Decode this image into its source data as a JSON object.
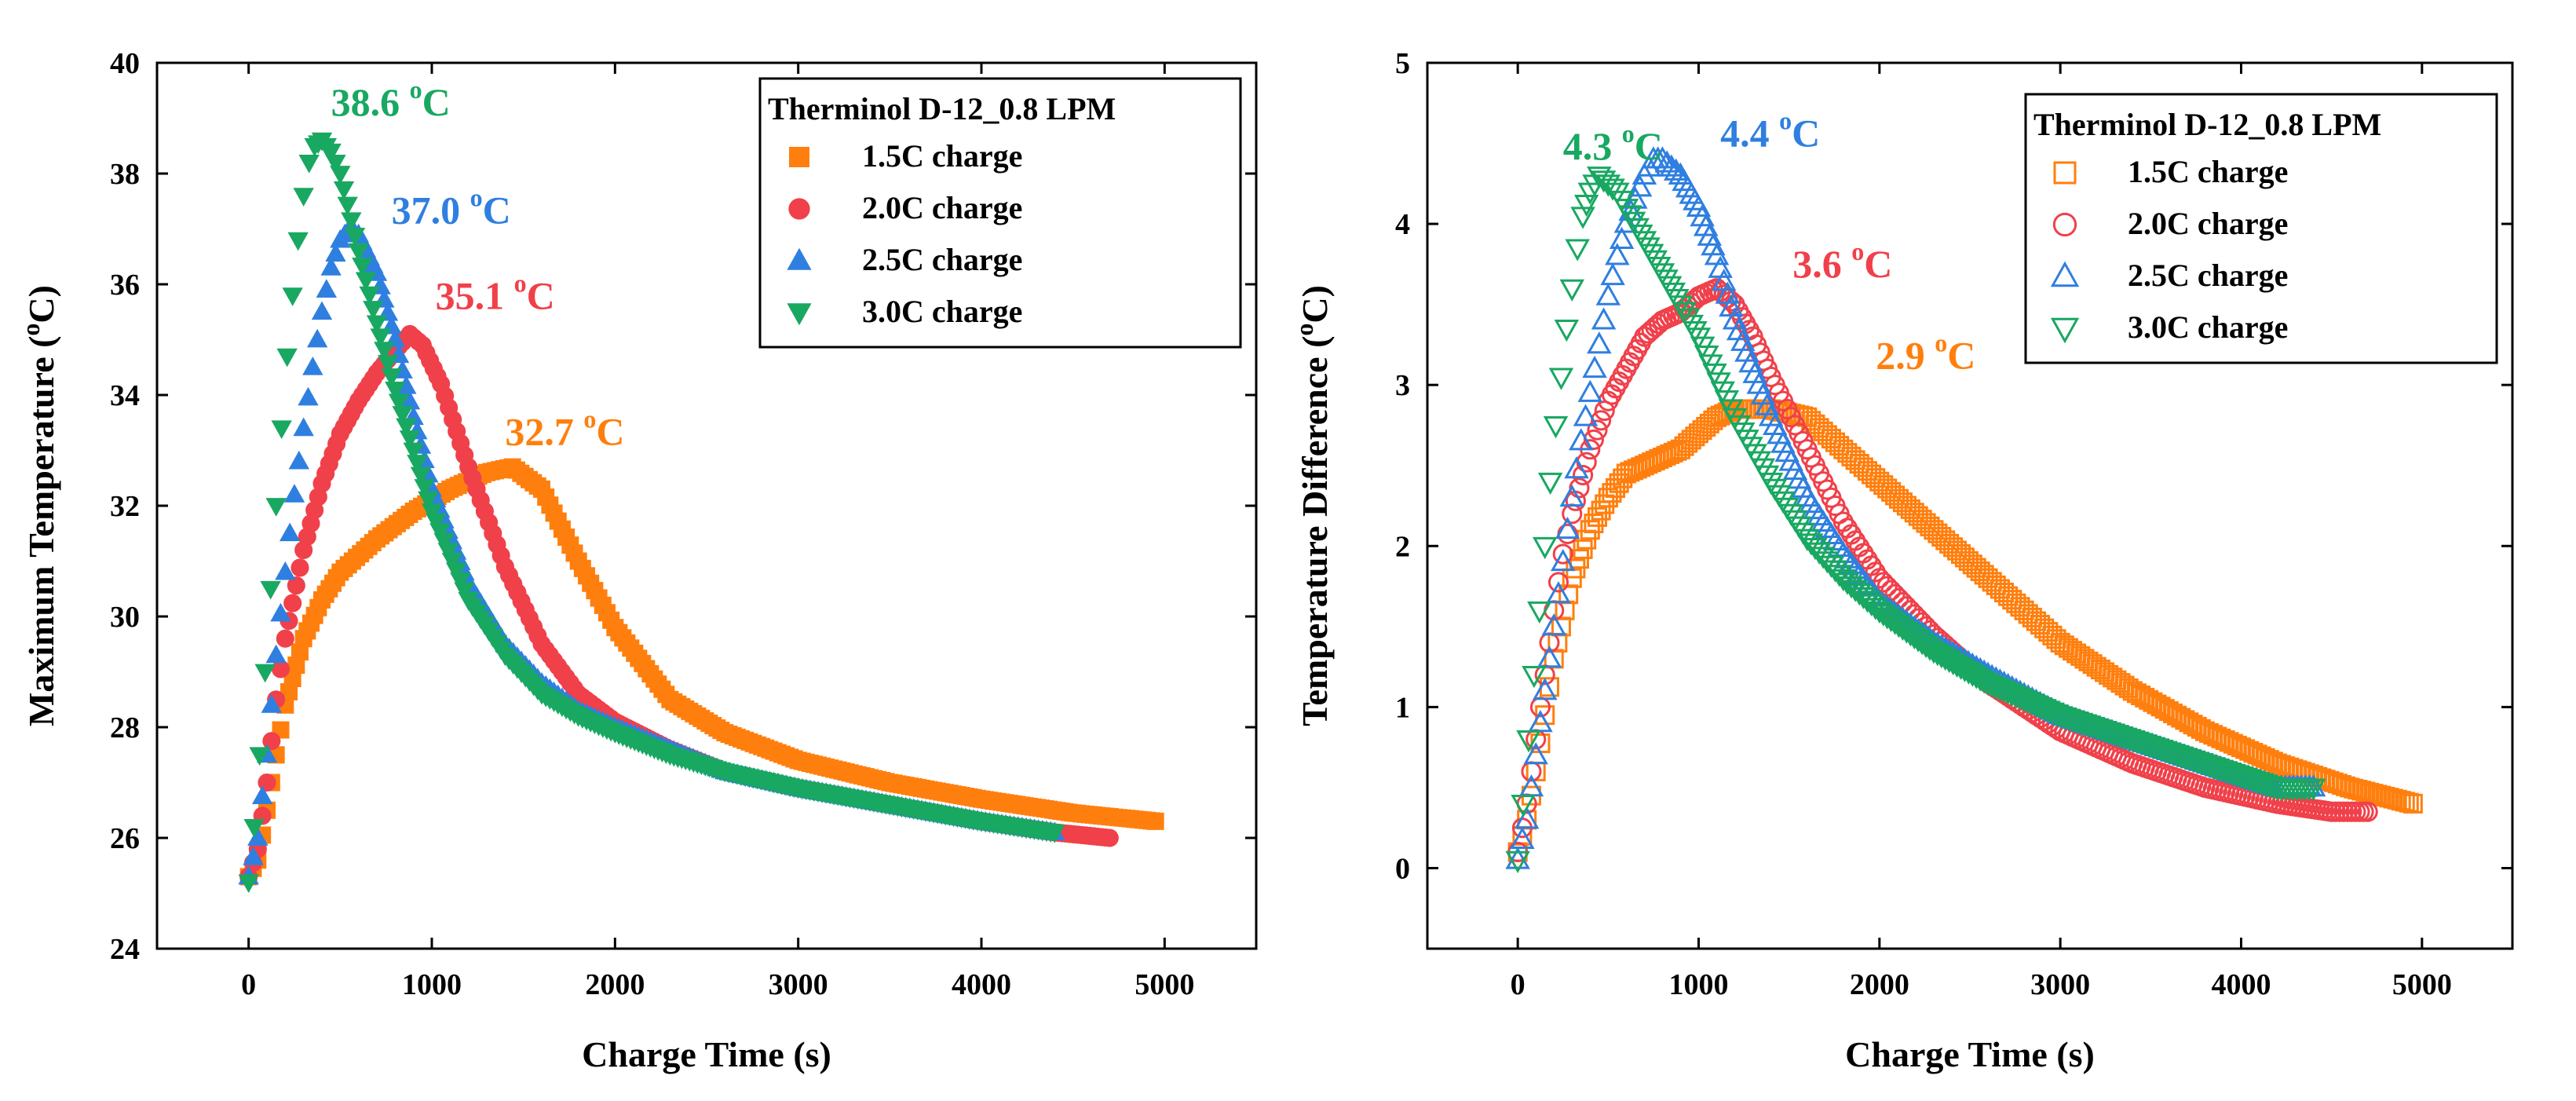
{
  "chart_data": [
    {
      "type": "scatter",
      "title": "",
      "xlabel": "Charge Time (s)",
      "ylabel_main": "Maximum Temperature (",
      "ylabel_sup": "o",
      "ylabel_end": "C)",
      "xlim": [
        -500,
        5500
      ],
      "ylim": [
        24,
        40
      ],
      "xticks": [
        0,
        1000,
        2000,
        3000,
        4000,
        5000
      ],
      "yticks": [
        24,
        26,
        28,
        30,
        32,
        34,
        36,
        38,
        40
      ],
      "legend_title": "Therminol D-12_0.8 LPM",
      "legend_position": "top-right",
      "series": [
        {
          "name": "1.5C charge",
          "color": "#FF7F0E",
          "marker": "square",
          "filled": true,
          "x": [
            0,
            50,
            100,
            150,
            200,
            300,
            400,
            500,
            700,
            900,
            1100,
            1300,
            1440,
            1600,
            1800,
            2000,
            2300,
            2600,
            3000,
            3500,
            4000,
            4500,
            4950
          ],
          "y": [
            25.3,
            25.6,
            26.5,
            27.5,
            28.4,
            29.6,
            30.3,
            30.8,
            31.4,
            31.9,
            32.3,
            32.6,
            32.7,
            32.3,
            31.0,
            29.8,
            28.5,
            27.9,
            27.4,
            27.0,
            26.7,
            26.45,
            26.3
          ]
        },
        {
          "name": "2.0C charge",
          "color": "#F0404A",
          "marker": "circle",
          "filled": true,
          "x": [
            0,
            50,
            100,
            150,
            200,
            300,
            400,
            500,
            600,
            700,
            800,
            880,
            950,
            1050,
            1200,
            1400,
            1600,
            1800,
            2000,
            2300,
            2600,
            3000,
            3500,
            4000,
            4400,
            4700
          ],
          "y": [
            25.3,
            25.8,
            27.0,
            28.5,
            29.6,
            31.2,
            32.4,
            33.3,
            33.9,
            34.4,
            34.8,
            35.1,
            34.9,
            34.2,
            32.7,
            30.9,
            29.5,
            28.6,
            28.1,
            27.6,
            27.2,
            26.9,
            26.6,
            26.3,
            26.1,
            26.0
          ]
        },
        {
          "name": "2.5C charge",
          "color": "#2F7FE0",
          "marker": "triangle-up",
          "filled": true,
          "x": [
            0,
            50,
            100,
            150,
            200,
            250,
            300,
            350,
            400,
            450,
            500,
            550,
            600,
            700,
            800,
            900,
            1000,
            1200,
            1400,
            1600,
            1800,
            2000,
            2300,
            2600,
            3000,
            3500,
            4000,
            4400
          ],
          "y": [
            25.3,
            26.0,
            27.5,
            29.3,
            30.8,
            32.2,
            33.4,
            34.5,
            35.5,
            36.3,
            36.8,
            37.0,
            36.9,
            36.2,
            35.0,
            33.6,
            32.3,
            30.6,
            29.5,
            28.8,
            28.3,
            28.0,
            27.6,
            27.2,
            26.9,
            26.6,
            26.3,
            26.1
          ]
        },
        {
          "name": "3.0C charge",
          "color": "#18A861",
          "marker": "triangle-down",
          "filled": true,
          "x": [
            0,
            30,
            60,
            90,
            120,
            150,
            180,
            210,
            240,
            270,
            300,
            330,
            360,
            400,
            450,
            500,
            600,
            700,
            800,
            900,
            1000,
            1200,
            1400,
            1600,
            1800,
            2000,
            2300,
            2600,
            3000,
            3500,
            4000,
            4400
          ],
          "y": [
            25.2,
            26.2,
            27.5,
            29.0,
            30.5,
            32.0,
            33.4,
            34.7,
            35.8,
            36.8,
            37.6,
            38.2,
            38.5,
            38.6,
            38.4,
            38.0,
            36.6,
            35.3,
            34.1,
            33.0,
            31.9,
            30.3,
            29.3,
            28.6,
            28.2,
            27.9,
            27.5,
            27.2,
            26.9,
            26.6,
            26.3,
            26.1
          ]
        }
      ],
      "annotations": [
        {
          "text": "38.6 ",
          "sup": "o",
          "unit": "C",
          "color": "#18A861",
          "x": 450,
          "y": 39.05
        },
        {
          "text": "37.0 ",
          "sup": "o",
          "unit": "C",
          "color": "#2F7FE0",
          "x": 780,
          "y": 37.1
        },
        {
          "text": "35.1 ",
          "sup": "o",
          "unit": "C",
          "color": "#F0404A",
          "x": 1020,
          "y": 35.55
        },
        {
          "text": "32.7 ",
          "sup": "o",
          "unit": "C",
          "color": "#FF7F0E",
          "x": 1400,
          "y": 33.1
        }
      ]
    },
    {
      "type": "scatter",
      "title": "",
      "xlabel": "Charge Time (s)",
      "ylabel_main": "Temperature Difference (",
      "ylabel_sup": "o",
      "ylabel_end": "C)",
      "xlim": [
        -500,
        5500
      ],
      "ylim": [
        -0.5,
        5
      ],
      "xticks": [
        0,
        1000,
        2000,
        3000,
        4000,
        5000
      ],
      "yticks": [
        0,
        1,
        2,
        3,
        4,
        5
      ],
      "legend_title": "Therminol D-12_0.8 LPM",
      "legend_position": "top-right",
      "series": [
        {
          "name": "1.5C charge",
          "color": "#FF7F0E",
          "marker": "square",
          "filled": false,
          "x": [
            0,
            50,
            100,
            150,
            200,
            300,
            400,
            500,
            600,
            700,
            800,
            900,
            1000,
            1100,
            1200,
            1400,
            1600,
            1800,
            2000,
            2300,
            2600,
            3000,
            3400,
            3800,
            4200,
            4600,
            4950
          ],
          "y": [
            0.1,
            0.3,
            0.6,
            0.95,
            1.3,
            1.8,
            2.1,
            2.3,
            2.45,
            2.5,
            2.55,
            2.6,
            2.7,
            2.8,
            2.85,
            2.85,
            2.8,
            2.6,
            2.4,
            2.1,
            1.8,
            1.4,
            1.1,
            0.85,
            0.65,
            0.5,
            0.4
          ]
        },
        {
          "name": "2.0C charge",
          "color": "#F0404A",
          "marker": "circle",
          "filled": false,
          "x": [
            0,
            50,
            100,
            150,
            200,
            250,
            300,
            400,
            500,
            600,
            700,
            800,
            900,
            1000,
            1100,
            1200,
            1300,
            1400,
            1600,
            1800,
            2000,
            2300,
            2600,
            3000,
            3400,
            3800,
            4200,
            4500,
            4700
          ],
          "y": [
            0.1,
            0.4,
            0.8,
            1.2,
            1.6,
            1.95,
            2.2,
            2.6,
            2.9,
            3.1,
            3.3,
            3.4,
            3.45,
            3.55,
            3.6,
            3.5,
            3.3,
            3.05,
            2.6,
            2.15,
            1.8,
            1.45,
            1.15,
            0.85,
            0.65,
            0.5,
            0.4,
            0.35,
            0.35
          ]
        },
        {
          "name": "2.5C charge",
          "color": "#2F7FE0",
          "marker": "triangle-up",
          "filled": false,
          "x": [
            0,
            50,
            100,
            150,
            200,
            250,
            300,
            350,
            400,
            450,
            500,
            550,
            600,
            650,
            700,
            750,
            800,
            850,
            900,
            1000,
            1100,
            1200,
            1400,
            1600,
            1800,
            2000,
            2300,
            2600,
            3000,
            3400,
            3800,
            4200,
            4400
          ],
          "y": [
            0.05,
            0.3,
            0.7,
            1.1,
            1.5,
            1.9,
            2.3,
            2.65,
            2.95,
            3.25,
            3.55,
            3.8,
            4.0,
            4.15,
            4.3,
            4.4,
            4.4,
            4.35,
            4.3,
            4.1,
            3.8,
            3.4,
            2.8,
            2.3,
            1.95,
            1.65,
            1.4,
            1.2,
            0.95,
            0.8,
            0.65,
            0.5,
            0.5
          ]
        },
        {
          "name": "3.0C charge",
          "color": "#18A861",
          "marker": "triangle-down",
          "filled": false,
          "x": [
            0,
            30,
            60,
            90,
            120,
            150,
            180,
            210,
            240,
            270,
            300,
            330,
            360,
            400,
            450,
            500,
            550,
            600,
            700,
            800,
            900,
            1000,
            1200,
            1400,
            1600,
            1800,
            2000,
            2300,
            2600,
            3000,
            3400,
            3800,
            4200,
            4400
          ],
          "y": [
            0.05,
            0.4,
            0.8,
            1.2,
            1.6,
            2.0,
            2.4,
            2.75,
            3.05,
            3.35,
            3.6,
            3.85,
            4.05,
            4.2,
            4.3,
            4.25,
            4.2,
            4.1,
            3.9,
            3.7,
            3.5,
            3.3,
            2.8,
            2.4,
            2.05,
            1.8,
            1.6,
            1.35,
            1.15,
            0.95,
            0.8,
            0.65,
            0.5,
            0.5
          ]
        }
      ],
      "annotations": [
        {
          "text": "4.3 ",
          "sup": "o",
          "unit": "C",
          "color": "#18A861",
          "x": 250,
          "y": 4.4
        },
        {
          "text": "4.4 ",
          "sup": "o",
          "unit": "C",
          "color": "#2F7FE0",
          "x": 1120,
          "y": 4.48
        },
        {
          "text": "3.6 ",
          "sup": "o",
          "unit": "C",
          "color": "#F0404A",
          "x": 1520,
          "y": 3.67
        },
        {
          "text": "2.9 ",
          "sup": "o",
          "unit": "C",
          "color": "#FF7F0E",
          "x": 1980,
          "y": 3.1
        }
      ]
    }
  ]
}
